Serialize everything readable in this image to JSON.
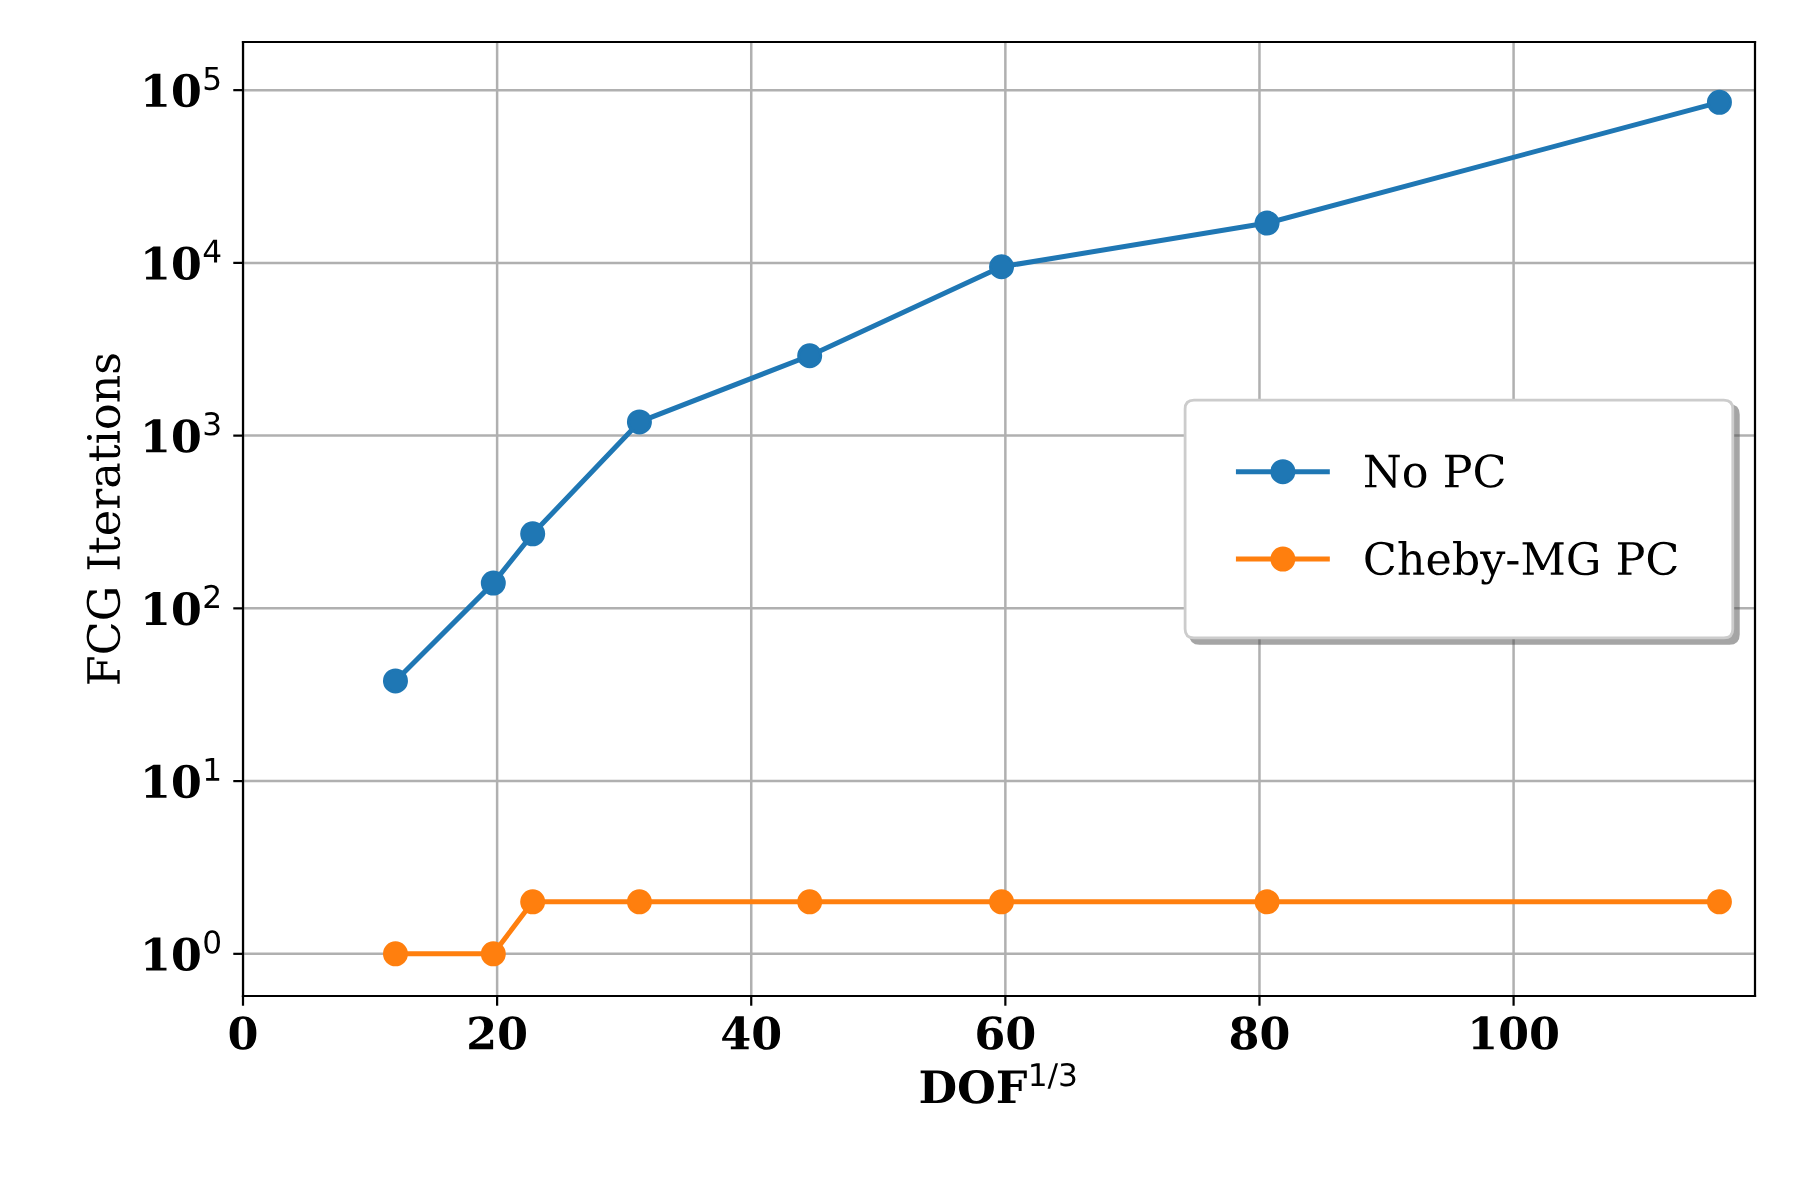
{
  "chart_data": {
    "type": "line",
    "xlabel": "DOF$^{1/3}$",
    "ylabel": "FCG Iterations",
    "log": "y",
    "x": [
      12,
      19.7,
      22.8,
      31.2,
      44.6,
      59.7,
      80.6,
      116.2
    ],
    "series": [
      {
        "name": "No PC",
        "color": "#1f77b4",
        "values": [
          38,
          140,
          270,
          1200,
          2900,
          9500,
          17000,
          85000
        ]
      },
      {
        "name": "Cheby-MG PC",
        "color": "#ff7f0e",
        "values": [
          1,
          1,
          2,
          2,
          2,
          2,
          2,
          2
        ]
      }
    ],
    "xlim": [
      0,
      119
    ],
    "xticks": [
      0,
      20,
      40,
      60,
      80,
      100
    ],
    "ylim": [
      0.57,
      190000
    ],
    "yticks": [
      {
        "value": 1,
        "label": "10$^{0}$"
      },
      {
        "value": 10,
        "label": "10$^{1}$"
      },
      {
        "value": 100,
        "label": "10$^{2}$"
      },
      {
        "value": 1000,
        "label": "10$^{3}$"
      },
      {
        "value": 10000,
        "label": "10$^{4}$"
      },
      {
        "value": 100000,
        "label": "10$^{5}$"
      }
    ],
    "grid": true,
    "legend": "right",
    "marker": "circle",
    "line_style": "solid"
  }
}
